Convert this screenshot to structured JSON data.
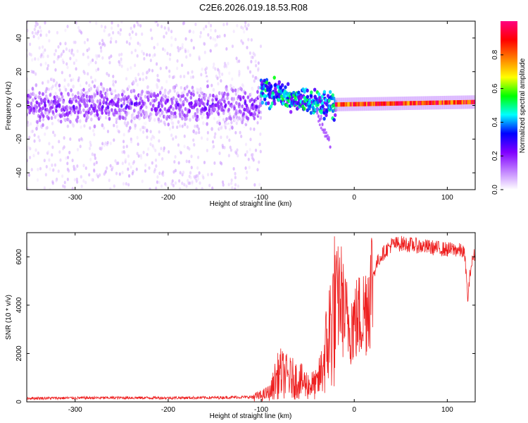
{
  "title": "C2E6.2026.019.18.53.R08",
  "chart_data": [
    {
      "type": "heatmap",
      "title": "C2E6.2026.019.18.53.R08",
      "xlabel": "Height of straight line (km)",
      "ylabel": "Frequency (Hz)",
      "xlim": [
        -352,
        130
      ],
      "ylim": [
        -50,
        50
      ],
      "xticks": [
        -300,
        -200,
        -100,
        0,
        100
      ],
      "yticks": [
        -40,
        -20,
        0,
        20,
        40
      ],
      "colorbar": {
        "label": "Normalized spectral amplitude",
        "range": [
          0.0,
          1.0
        ],
        "ticks": [
          "0.0",
          "0.2",
          "0.4",
          "0.6",
          "0.8"
        ],
        "colors": [
          "#ffffff",
          "#c080ff",
          "#8000ff",
          "#0000ff",
          "#00ffff",
          "#00ff00",
          "#ffff00",
          "#ff8000",
          "#ff0000",
          "#ff0080"
        ]
      },
      "description_segments": [
        {
          "x_range": [
            -352,
            -100
          ],
          "frequency_spread": [
            -50,
            50
          ],
          "core_band": [
            -8,
            8
          ],
          "amplitude_core": 0.15
        },
        {
          "x_range": [
            -100,
            -20
          ],
          "frequency_center": [
            8,
            0
          ],
          "core_band_halfwidth": 5,
          "amplitude_core": 0.4
        },
        {
          "x_range": [
            -20,
            130
          ],
          "frequency_center": [
            0.5,
            2
          ],
          "core_band_halfwidth": 1.5,
          "amplitude_core": 0.9
        }
      ]
    },
    {
      "type": "line",
      "xlabel": "Height of straight line (km)",
      "ylabel": "SNR (10 * v/v)",
      "xlim": [
        -352,
        130
      ],
      "ylim": [
        0,
        7000
      ],
      "xticks": [
        -300,
        -200,
        -100,
        0,
        100
      ],
      "yticks": [
        0,
        2000,
        4000,
        6000
      ],
      "color": "#ee2020",
      "series": [
        {
          "name": "SNR",
          "x": [
            -352,
            -300,
            -250,
            -200,
            -150,
            -110,
            -100,
            -90,
            -85,
            -80,
            -70,
            -60,
            -50,
            -40,
            -35,
            -30,
            -25,
            -20,
            -15,
            -10,
            -5,
            0,
            5,
            10,
            15,
            20,
            25,
            30,
            35,
            40,
            50,
            60,
            70,
            80,
            90,
            100,
            110,
            118,
            120,
            122,
            125,
            128,
            130
          ],
          "y": [
            150,
            160,
            170,
            165,
            175,
            200,
            250,
            400,
            900,
            1200,
            1000,
            900,
            700,
            700,
            1300,
            2200,
            3200,
            4000,
            4500,
            3500,
            3200,
            3300,
            3500,
            3700,
            4300,
            5200,
            5800,
            6100,
            6300,
            6500,
            6550,
            6500,
            6450,
            6400,
            6350,
            6300,
            6300,
            6200,
            5500,
            4200,
            5500,
            6000,
            6100
          ]
        }
      ]
    }
  ]
}
